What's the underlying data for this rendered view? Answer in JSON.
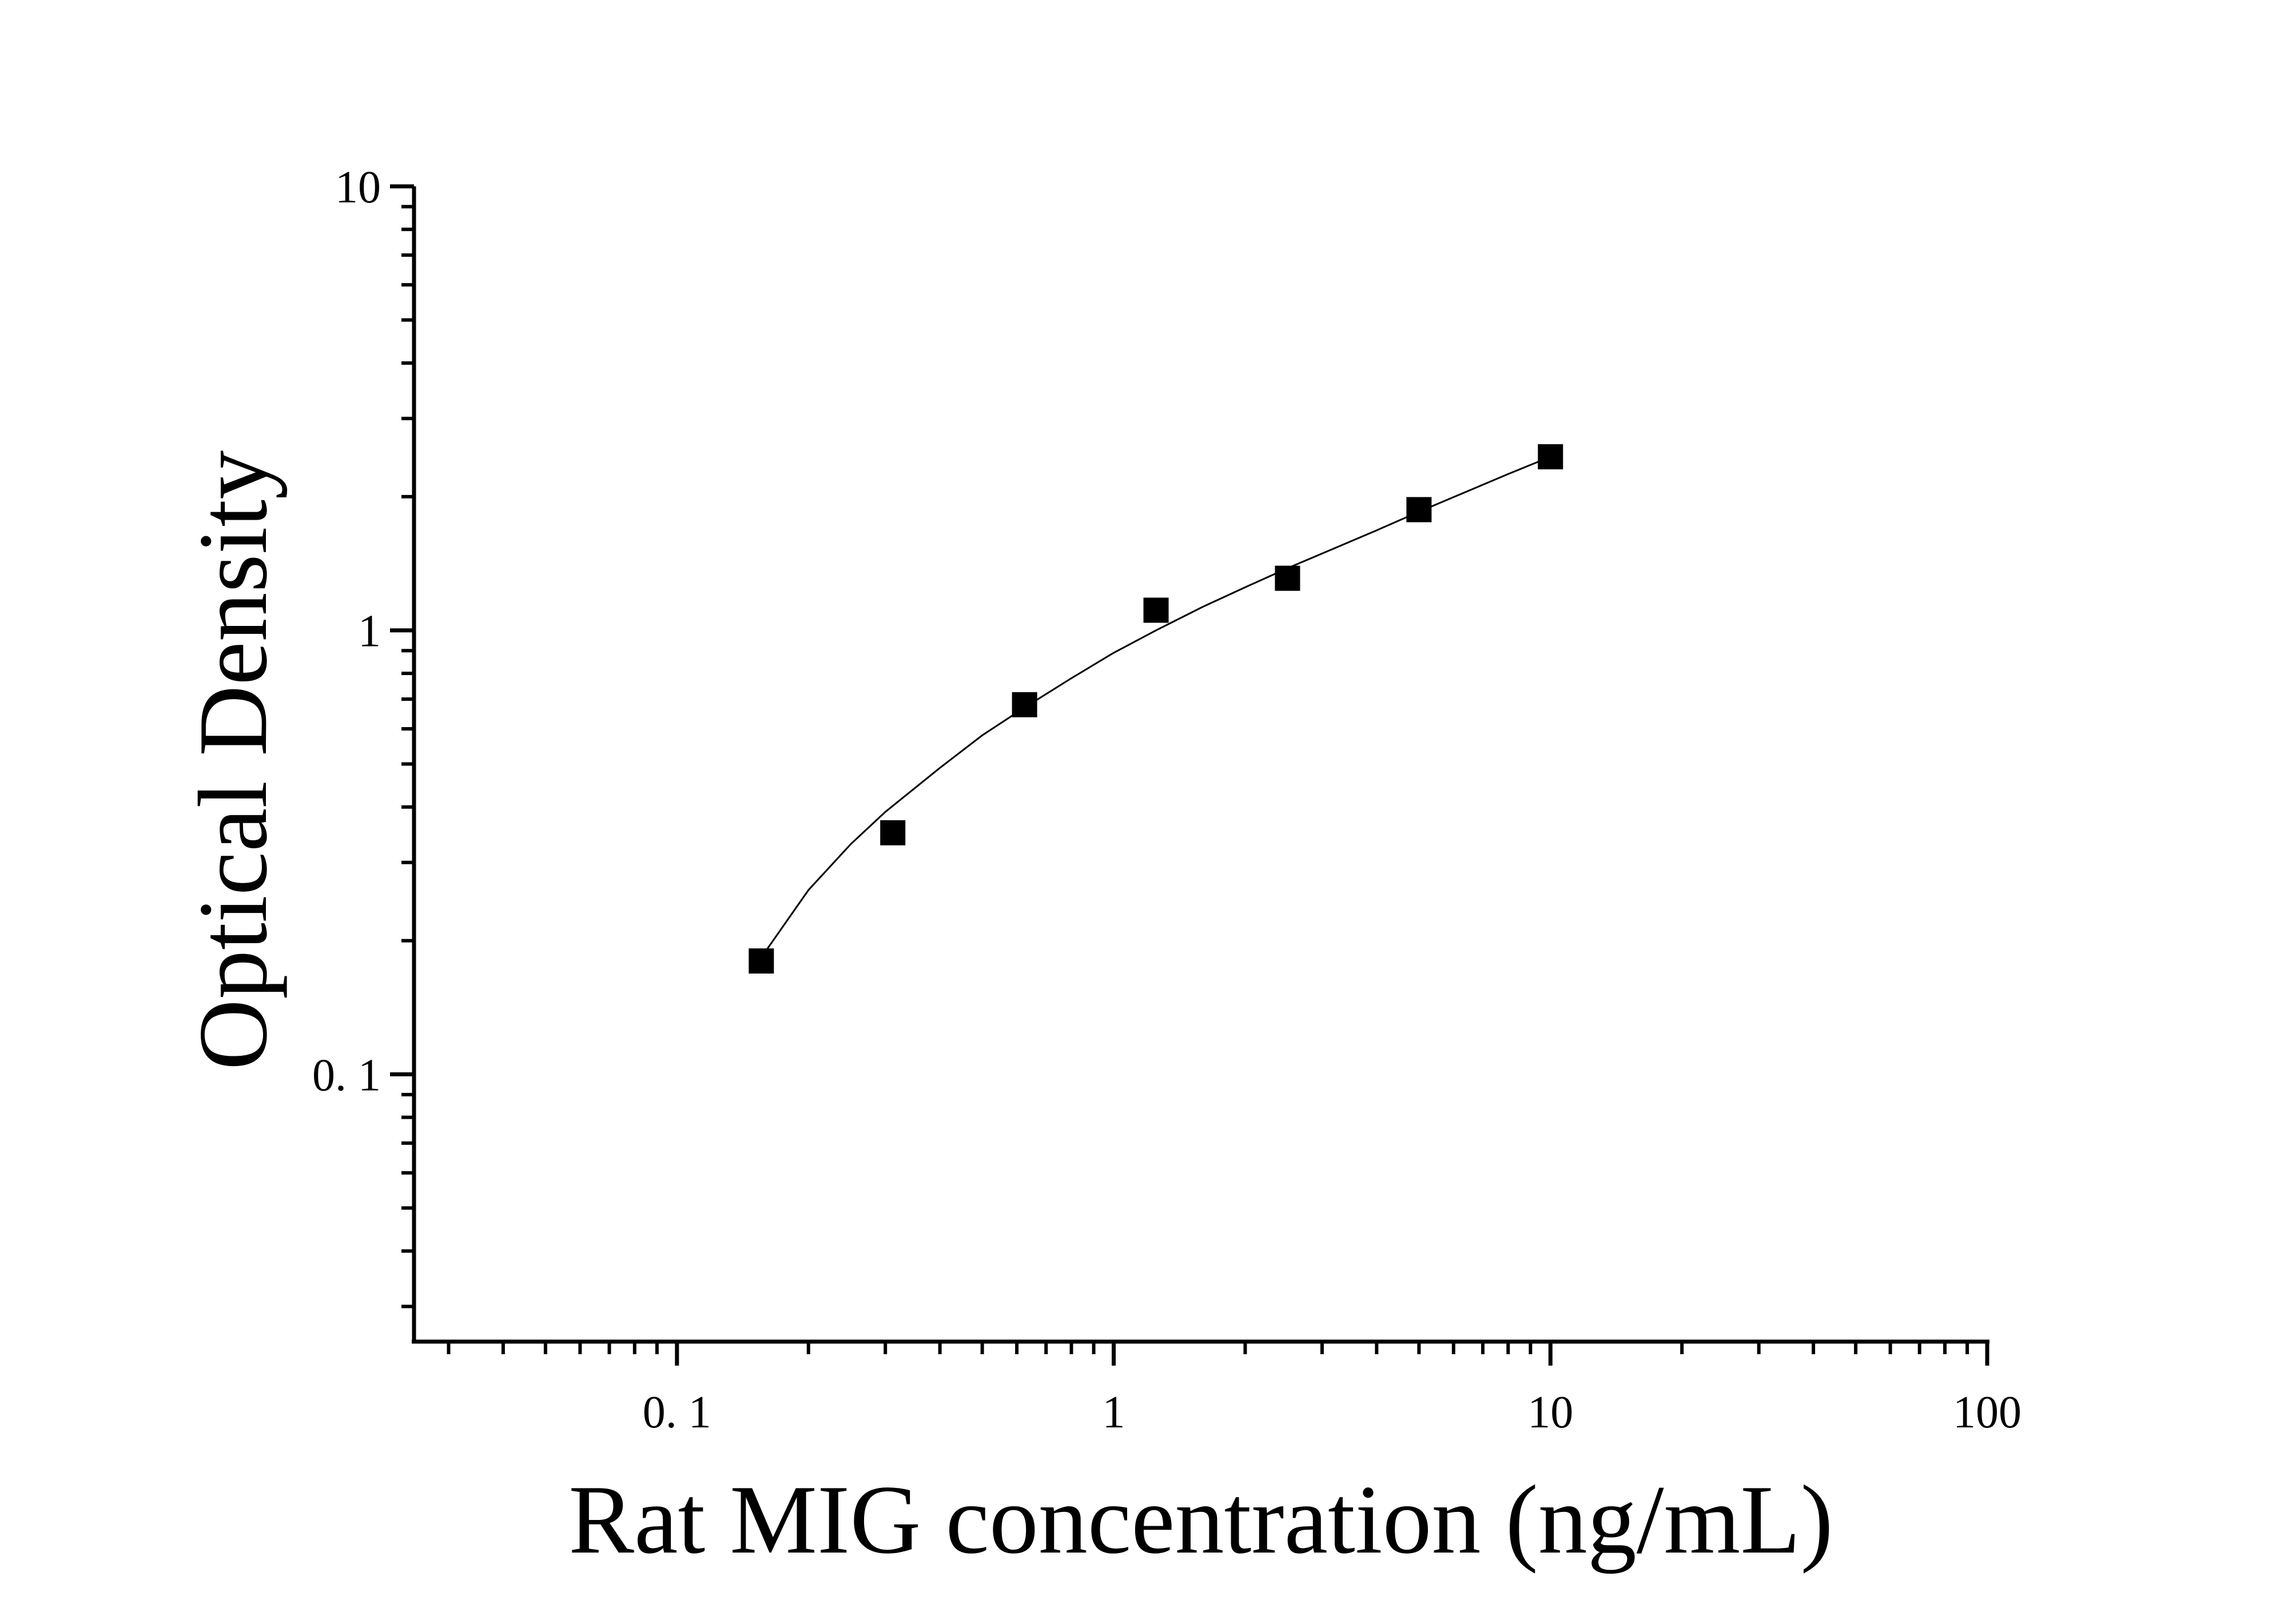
{
  "chart_data": {
    "type": "scatter",
    "title": "",
    "xlabel": "Rat MIG concentration (ng/mL)",
    "ylabel": "Optical Density",
    "x_scale": "log",
    "y_scale": "log",
    "xlim": [
      0.025,
      100
    ],
    "ylim": [
      0.025,
      10
    ],
    "x_ticks": [
      0.1,
      1,
      10,
      100
    ],
    "x_tick_labels": [
      "0. 1",
      "1",
      "10",
      "100"
    ],
    "y_ticks": [
      0.1,
      1,
      10
    ],
    "y_tick_labels": [
      "0. 1",
      "1",
      "10"
    ],
    "grid": false,
    "legend": "none",
    "marker": "square",
    "color": "#000000",
    "series": [
      {
        "points": [
          {
            "x": 0.156,
            "y": 0.18
          },
          {
            "x": 0.312,
            "y": 0.35
          },
          {
            "x": 0.625,
            "y": 0.68
          },
          {
            "x": 1.25,
            "y": 1.11
          },
          {
            "x": 2.5,
            "y": 1.31
          },
          {
            "x": 5,
            "y": 1.87
          },
          {
            "x": 10,
            "y": 2.46
          }
        ]
      }
    ],
    "fit_curve": {
      "x": [
        0.16,
        0.2,
        0.25,
        0.3,
        0.4,
        0.5,
        0.625,
        0.8,
        1,
        1.25,
        1.6,
        2,
        2.5,
        3.2,
        4,
        5,
        6.4,
        8,
        10
      ],
      "y": [
        0.19,
        0.26,
        0.33,
        0.39,
        0.49,
        0.58,
        0.67,
        0.78,
        0.89,
        1.0,
        1.13,
        1.25,
        1.38,
        1.53,
        1.68,
        1.85,
        2.05,
        2.25,
        2.46
      ]
    }
  }
}
